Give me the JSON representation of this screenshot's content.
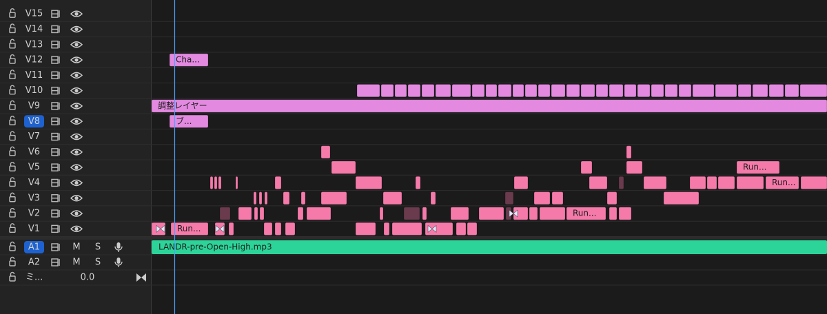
{
  "video_tracks": [
    {
      "label": "V15"
    },
    {
      "label": "V14"
    },
    {
      "label": "V13"
    },
    {
      "label": "V12",
      "clips": [
        "Cha..."
      ]
    },
    {
      "label": "V11"
    },
    {
      "label": "V10"
    },
    {
      "label": "V9",
      "clips": [
        "調整レイヤー"
      ]
    },
    {
      "label": "V8",
      "selected": true,
      "clips": [
        "ブ..."
      ]
    },
    {
      "label": "V7"
    },
    {
      "label": "V6"
    },
    {
      "label": "V5",
      "clips": [
        "Run..."
      ]
    },
    {
      "label": "V4",
      "clips": [
        "Run..."
      ]
    },
    {
      "label": "V3"
    },
    {
      "label": "V2",
      "clips": [
        "Run..."
      ]
    },
    {
      "label": "V1",
      "clips": [
        "Run..."
      ]
    }
  ],
  "audio_tracks": [
    {
      "label": "A1",
      "selected": true,
      "mute": "M",
      "solo": "S",
      "clips": [
        "LANDR-pre-Open-High.mp3"
      ]
    },
    {
      "label": "A2",
      "mute": "M",
      "solo": "S"
    }
  ],
  "mix": {
    "label": "ミ...",
    "value": "0.0"
  }
}
